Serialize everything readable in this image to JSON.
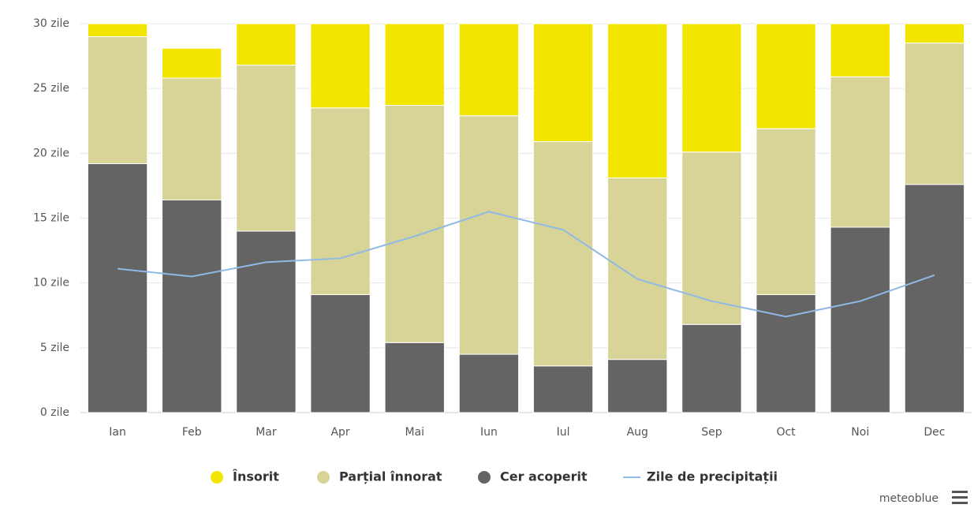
{
  "chart_data": {
    "type": "bar",
    "stacked": true,
    "categories": [
      "Ian",
      "Feb",
      "Mar",
      "Apr",
      "Mai",
      "Iun",
      "Iul",
      "Aug",
      "Sep",
      "Oct",
      "Noi",
      "Dec"
    ],
    "series": [
      {
        "name": "Însorit",
        "color": "#f2e600",
        "values": [
          1.0,
          2.3,
          3.2,
          6.5,
          6.3,
          7.1,
          9.1,
          11.9,
          9.9,
          8.1,
          4.1,
          1.5
        ]
      },
      {
        "name": "Parțial înnorat",
        "color": "#d8d396",
        "values": [
          9.8,
          9.4,
          12.8,
          14.4,
          18.3,
          18.4,
          17.3,
          14.0,
          13.3,
          12.8,
          11.6,
          10.9
        ]
      },
      {
        "name": "Cer acoperit",
        "color": "#646464",
        "values": [
          19.2,
          16.4,
          14.0,
          9.1,
          5.4,
          4.5,
          3.6,
          4.1,
          6.8,
          9.1,
          14.3,
          17.6
        ]
      },
      {
        "name": "Zile de precipitații",
        "color": "#8fb9e6",
        "type": "line",
        "values": [
          11.1,
          10.5,
          11.6,
          11.9,
          13.6,
          15.5,
          14.1,
          10.3,
          8.6,
          7.4,
          8.6,
          10.6
        ]
      }
    ],
    "ylim": [
      0,
      30
    ],
    "yticks": [
      {
        "value": 0,
        "label": "0 zile"
      },
      {
        "value": 5,
        "label": "5 zile"
      },
      {
        "value": 10,
        "label": "10 zile"
      },
      {
        "value": 15,
        "label": "15 zile"
      },
      {
        "value": 20,
        "label": "20 zile"
      },
      {
        "value": 25,
        "label": "25 zile"
      },
      {
        "value": 30,
        "label": "30 zile"
      }
    ],
    "grid": true,
    "legend": "bottom",
    "credit": "meteoblue"
  }
}
